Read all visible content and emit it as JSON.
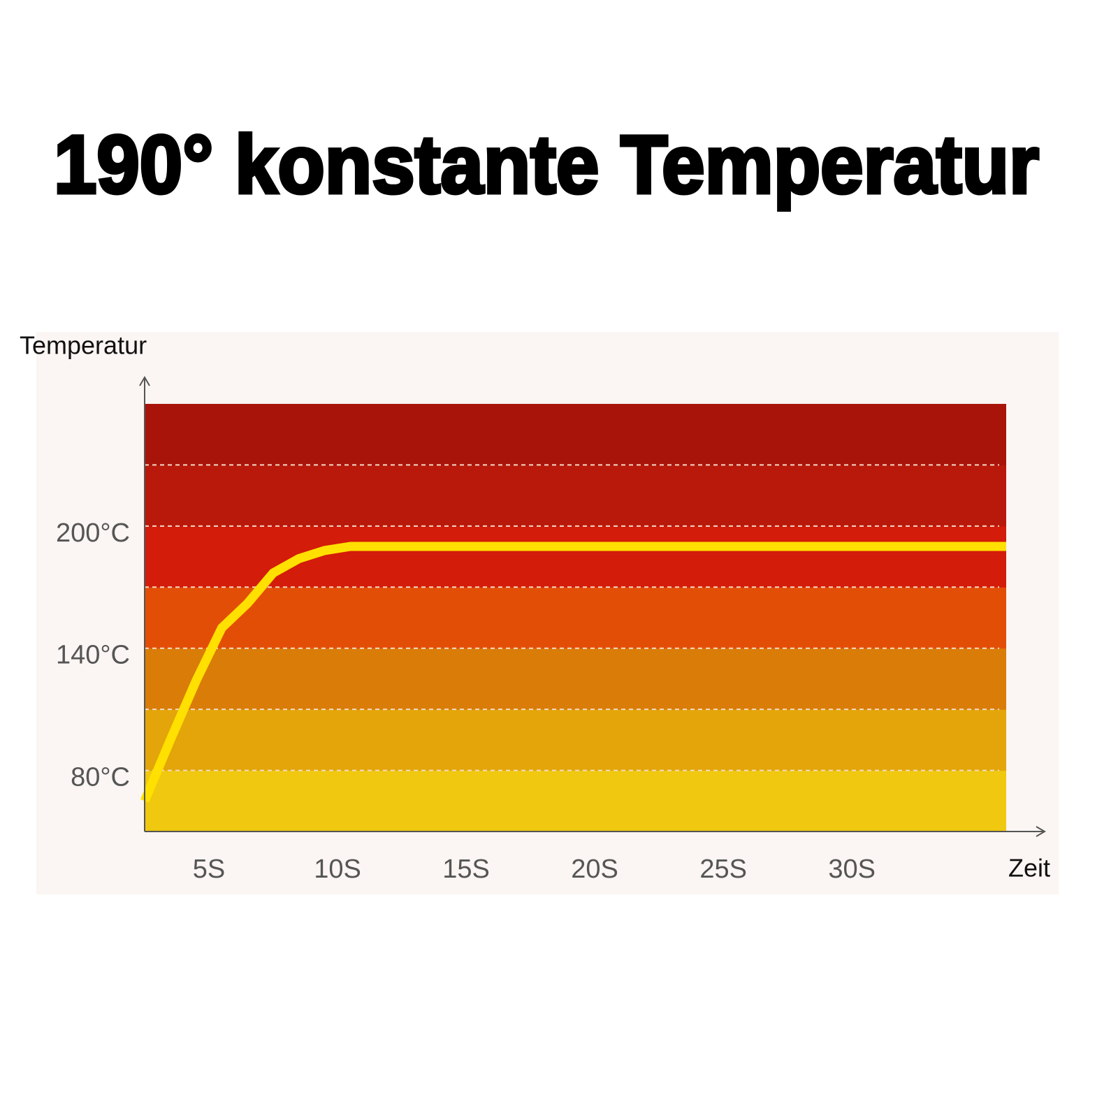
{
  "chart_data": {
    "type": "line",
    "title": "190° konstante Temperatur",
    "y_label": "Temperatur",
    "x_label": "Zeit",
    "x": [
      2.5,
      3.5,
      4.5,
      5.5,
      6.5,
      7.5,
      8.5,
      9.5,
      10.5,
      36
    ],
    "series": [
      {
        "color": "#ffe000",
        "values": [
          65,
          95,
          124,
          150,
          162,
          177,
          184,
          188,
          190,
          190
        ]
      }
    ],
    "xlim": [
      2.5,
      36
    ],
    "ylim": [
      50,
      260
    ],
    "xticks": [
      {
        "value": 5,
        "label": "5S"
      },
      {
        "value": 10,
        "label": "10S"
      },
      {
        "value": 15,
        "label": "15S"
      },
      {
        "value": 20,
        "label": "20S"
      },
      {
        "value": 25,
        "label": "25S"
      },
      {
        "value": 30,
        "label": "30S"
      }
    ],
    "yticks": [
      {
        "value": 80,
        "label": "80°C"
      },
      {
        "value": 140,
        "label": "140°C"
      },
      {
        "value": 200,
        "label": "200°C"
      }
    ],
    "band_colors": [
      "#efc80f",
      "#e3a509",
      "#d97c08",
      "#e34e06",
      "#d31c0a",
      "#b8190a",
      "#a8140a"
    ],
    "grid": true
  }
}
